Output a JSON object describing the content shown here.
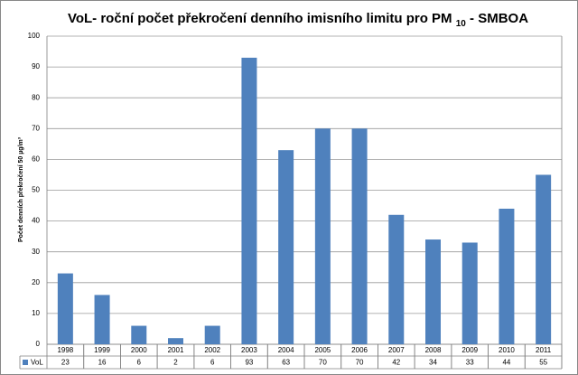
{
  "chart_data": {
    "type": "bar",
    "title": "VoL- roční počet překročení denního imisního limitu pro PM",
    "title_subscript": "10",
    "title_suffix": "- SMBOA",
    "y_label": "Počet denních překročení 50 µg/m³",
    "categories": [
      "1998",
      "1999",
      "2000",
      "2001",
      "2002",
      "2003",
      "2004",
      "2005",
      "2006",
      "2007",
      "2008",
      "2009",
      "2010",
      "2011"
    ],
    "series": [
      {
        "name": "VoL",
        "color": "#4f81bd",
        "values": [
          23,
          16,
          6,
          2,
          6,
          93,
          63,
          70,
          70,
          42,
          34,
          33,
          44,
          55
        ]
      }
    ],
    "ylim": [
      0,
      100
    ],
    "yticks": [
      0,
      10,
      20,
      30,
      40,
      50,
      60,
      70,
      80,
      90,
      100
    ],
    "grid": true
  }
}
